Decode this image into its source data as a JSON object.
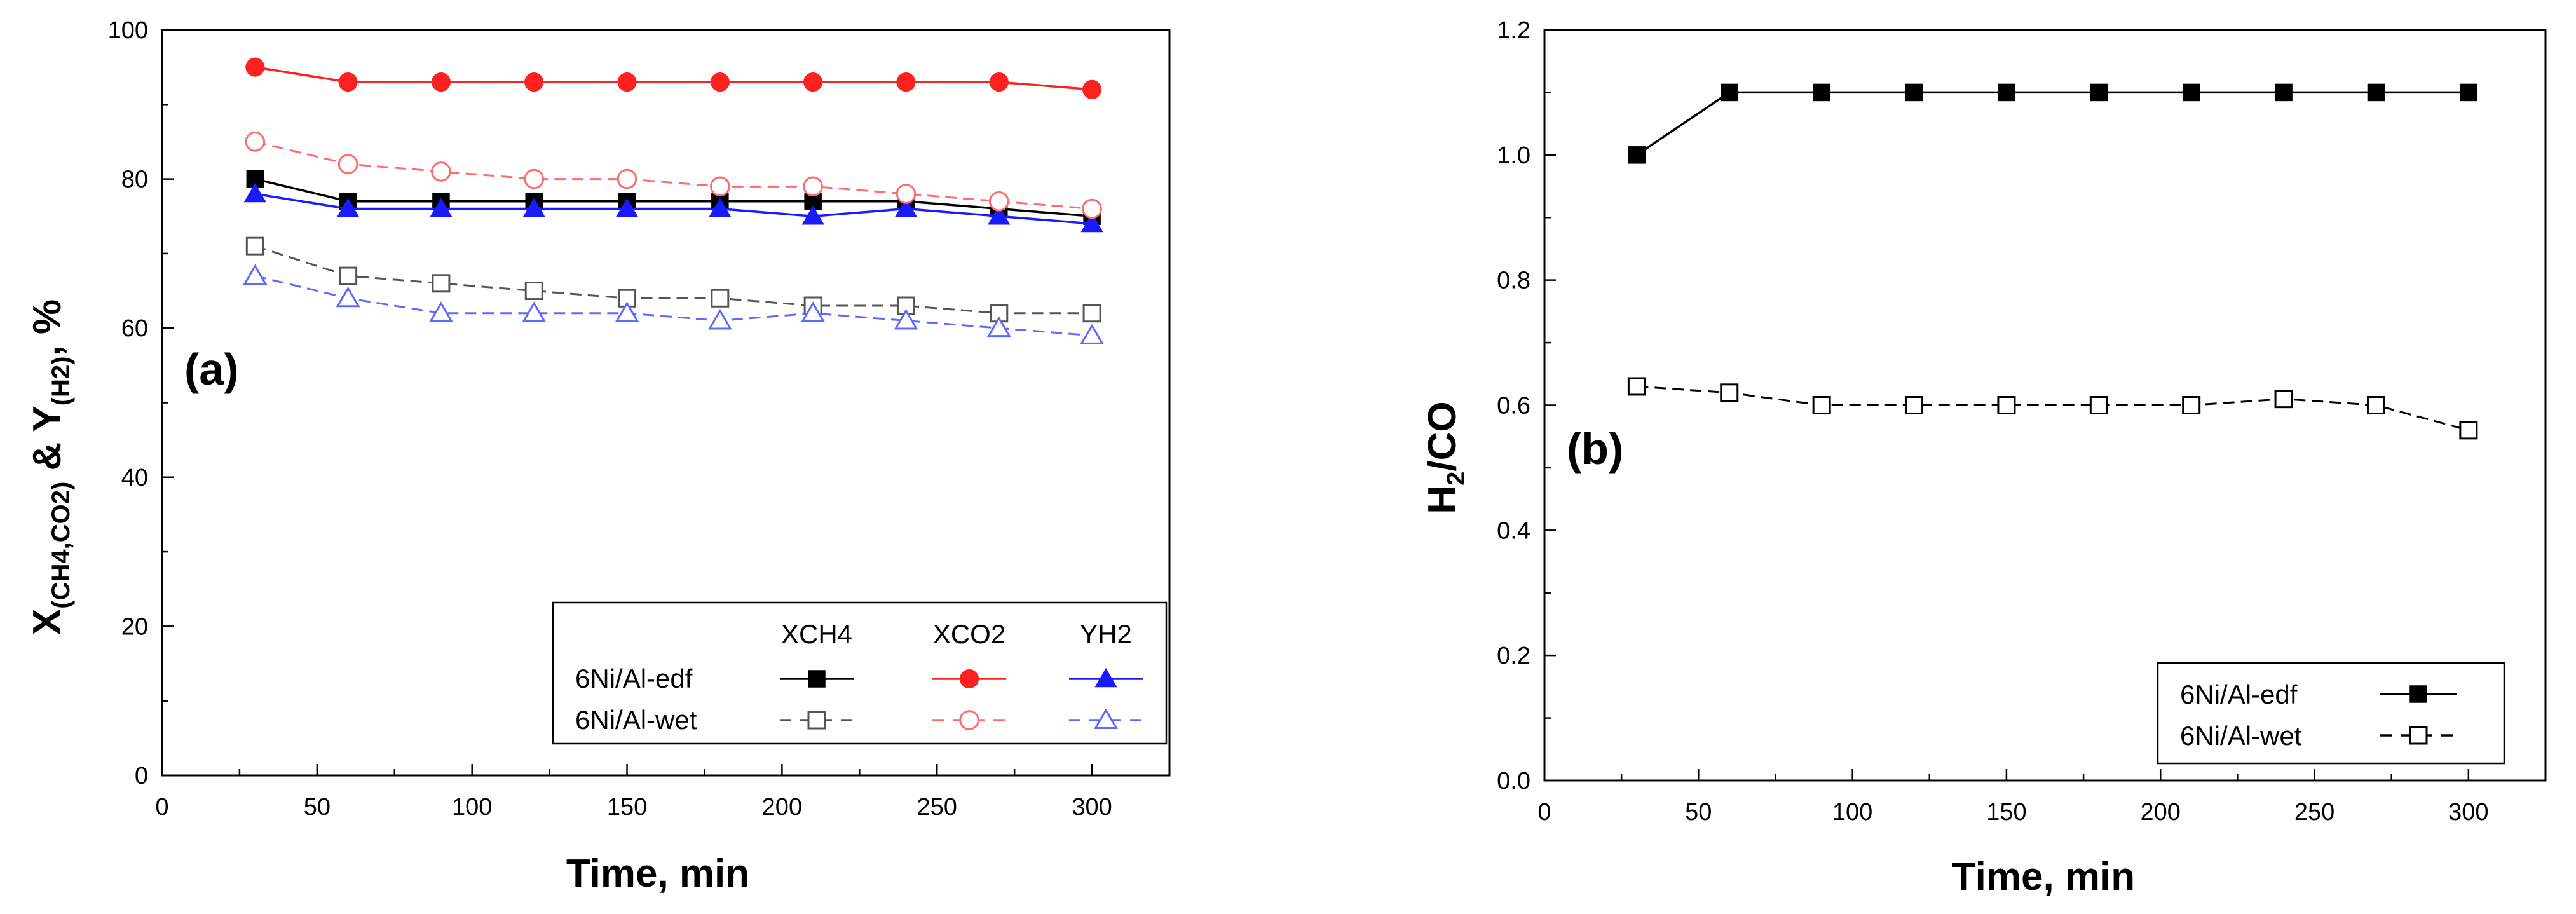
{
  "chart_data": [
    {
      "type": "line",
      "panel_label": "(a)",
      "xlabel": "Time, min",
      "ylabel": {
        "main": "X",
        "sub1": "(CH4,CO2)",
        "mid": " & Y",
        "sub2": "(H2)",
        "tail": ", %"
      },
      "xlim": [
        0,
        325
      ],
      "ylim": [
        0,
        100
      ],
      "xticks": [
        0,
        50,
        100,
        150,
        200,
        250,
        300
      ],
      "yticks": [
        0,
        20,
        40,
        60,
        80,
        100
      ],
      "x": [
        30,
        60,
        90,
        120,
        150,
        180,
        210,
        240,
        270,
        300
      ],
      "legend": {
        "position": "bottom-right",
        "columns": [
          "XCH4",
          "XCO2",
          "YH2"
        ],
        "rows": [
          "6Ni/Al-edf",
          "6Ni/Al-wet"
        ]
      },
      "series": [
        {
          "name": "6Ni/Al-edf XCH4",
          "color": "#000000",
          "marker": "square",
          "filled": true,
          "dash": false,
          "values": [
            80,
            77,
            77,
            77,
            77,
            77,
            77,
            77,
            76,
            75
          ]
        },
        {
          "name": "6Ni/Al-edf XCO2",
          "color": "#ff2020",
          "marker": "circle",
          "filled": true,
          "dash": false,
          "values": [
            95,
            93,
            93,
            93,
            93,
            93,
            93,
            93,
            93,
            92
          ]
        },
        {
          "name": "6Ni/Al-edf YH2",
          "color": "#1a1aff",
          "marker": "triangle",
          "filled": true,
          "dash": false,
          "values": [
            78,
            76,
            76,
            76,
            76,
            76,
            75,
            76,
            75,
            74
          ]
        },
        {
          "name": "6Ni/Al-wet XCH4",
          "color": "#555555",
          "marker": "square",
          "filled": false,
          "dash": true,
          "values": [
            71,
            67,
            66,
            65,
            64,
            64,
            63,
            63,
            62,
            62
          ]
        },
        {
          "name": "6Ni/Al-wet XCO2",
          "color": "#ff6b6b",
          "marker": "circle",
          "filled": false,
          "dash": true,
          "values": [
            85,
            82,
            81,
            80,
            80,
            79,
            79,
            78,
            77,
            76
          ]
        },
        {
          "name": "6Ni/Al-wet YH2",
          "color": "#5b6bff",
          "marker": "triangle",
          "filled": false,
          "dash": true,
          "values": [
            67,
            64,
            62,
            62,
            62,
            61,
            62,
            61,
            60,
            59
          ]
        }
      ]
    },
    {
      "type": "line",
      "panel_label": "(b)",
      "xlabel": "Time, min",
      "ylabel": {
        "main": "H",
        "sub": "2",
        "tail": "/CO"
      },
      "xlim": [
        0,
        325
      ],
      "ylim": [
        0,
        1.2
      ],
      "xticks": [
        0,
        50,
        100,
        150,
        200,
        250,
        300
      ],
      "yticks": [
        0.0,
        0.2,
        0.4,
        0.6,
        0.8,
        1.0,
        1.2
      ],
      "ytick_labels": [
        "0.0",
        "0.2",
        "0.4",
        "0.6",
        "0.8",
        "1.0",
        "1.2"
      ],
      "x": [
        30,
        60,
        90,
        120,
        150,
        180,
        210,
        240,
        270,
        300
      ],
      "legend": {
        "position": "bottom-right"
      },
      "series": [
        {
          "name": "6Ni/Al-edf",
          "color": "#000000",
          "marker": "square",
          "filled": true,
          "dash": false,
          "values": [
            1.0,
            1.1,
            1.1,
            1.1,
            1.1,
            1.1,
            1.1,
            1.1,
            1.1,
            1.1
          ]
        },
        {
          "name": "6Ni/Al-wet",
          "color": "#000000",
          "marker": "square",
          "filled": false,
          "dash": true,
          "values": [
            0.63,
            0.62,
            0.6,
            0.6,
            0.6,
            0.6,
            0.6,
            0.61,
            0.6,
            0.56
          ]
        }
      ]
    }
  ]
}
